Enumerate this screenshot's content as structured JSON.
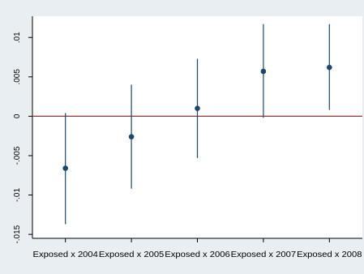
{
  "chart_data": {
    "type": "scatter",
    "title": "",
    "xlabel": "",
    "ylabel": "",
    "categories": [
      "Exposed x 2004",
      "Exposed x 2005",
      "Exposed x 2006",
      "Exposed x 2007",
      "Exposed x 2008"
    ],
    "estimates": [
      -0.0066,
      -0.0026,
      0.001,
      0.0057,
      0.0062
    ],
    "ci_low": [
      -0.0137,
      -0.0092,
      -0.0053,
      -0.0002,
      0.0008
    ],
    "ci_high": [
      0.0004,
      0.004,
      0.0073,
      0.0117,
      0.0117
    ],
    "yticks": [
      0.01,
      0.005,
      0,
      -0.005,
      -0.01,
      -0.015
    ],
    "ytick_labels": [
      ".01",
      ".005",
      "0",
      "-.005",
      "-.01",
      "-.015"
    ],
    "ylim": [
      -0.0155,
      0.0127
    ],
    "reference_line": 0,
    "grid": false,
    "colors": {
      "background": "#e8eef2",
      "plot_area": "#ffffff",
      "marker": "#1a476f",
      "reference_line": "#90353b",
      "axis": "#000000"
    }
  }
}
